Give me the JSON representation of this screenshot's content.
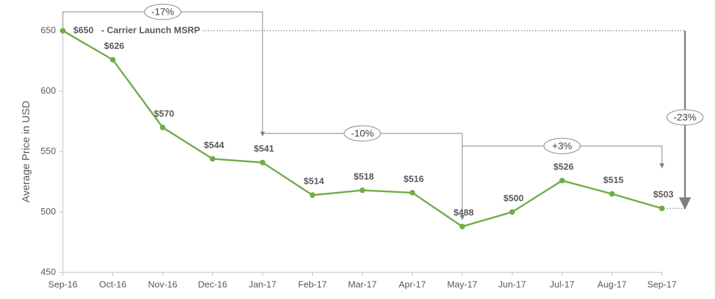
{
  "chart_data": {
    "type": "line",
    "y_axis_label": "Average Price in USD",
    "categories": [
      "Sep-16",
      "Oct-16",
      "Nov-16",
      "Dec-16",
      "Jan-17",
      "Feb-17",
      "Mar-17",
      "Apr-17",
      "May-17",
      "Jun-17",
      "Jul-17",
      "Aug-17",
      "Sep-17"
    ],
    "series": [
      {
        "name": "Average Price",
        "color": "#70ad47",
        "values": [
          650,
          626,
          570,
          544,
          541,
          514,
          518,
          516,
          488,
          500,
          526,
          515,
          503
        ],
        "value_labels": [
          "$650",
          "$626",
          "$570",
          "$544",
          "$541",
          "$514",
          "$518",
          "$516",
          "$488",
          "$500",
          "$526",
          "$515",
          "$503"
        ]
      }
    ],
    "ylim": [
      450,
      650
    ],
    "yticks": [
      450,
      500,
      550,
      600,
      650
    ],
    "first_point_note": "- Carrier Launch MSRP",
    "annotations": [
      "-17%",
      "-10%",
      "+3%",
      "-23%"
    ]
  }
}
